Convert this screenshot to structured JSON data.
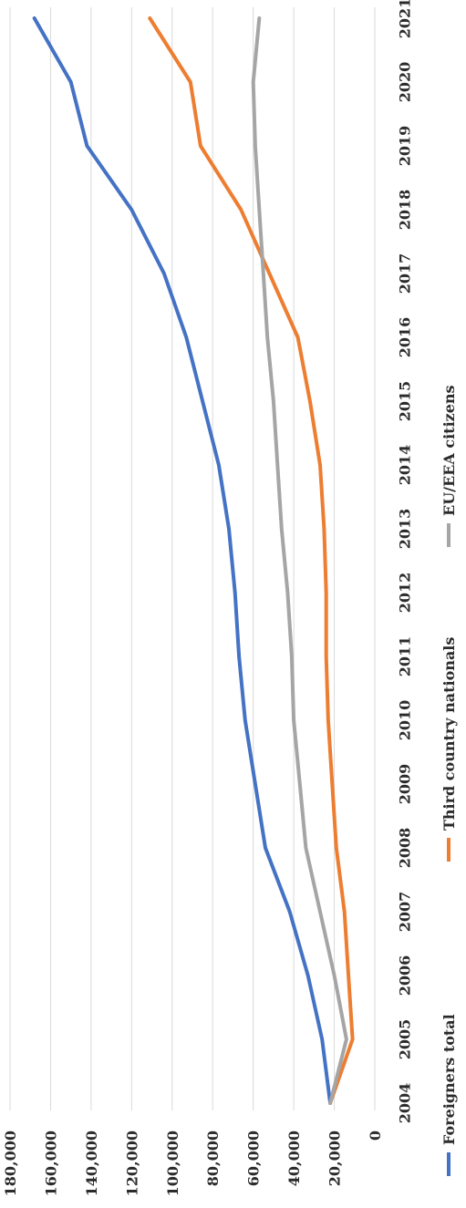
{
  "chart_data": {
    "type": "line",
    "title": "",
    "xlabel": "",
    "ylabel": "",
    "categories": [
      "2004",
      "2005",
      "2006",
      "2007",
      "2008",
      "2009",
      "2010",
      "2011",
      "2012",
      "2013",
      "2014",
      "2015",
      "2016",
      "2017",
      "2018",
      "2019",
      "2020",
      "2021"
    ],
    "ylim": [
      0,
      180000
    ],
    "ytick_labels": [
      "0",
      "20,000",
      "40,000",
      "60,000",
      "80,000",
      "100,000",
      "120,000",
      "140,000",
      "160,000",
      "180,000"
    ],
    "grid": true,
    "legend_position": "bottom",
    "series": [
      {
        "name": "Foreigners total",
        "color": "#4472c4",
        "values": [
          22000,
          26000,
          33000,
          42000,
          54000,
          59000,
          64000,
          67000,
          69000,
          72000,
          77000,
          85000,
          93000,
          104000,
          120000,
          142000,
          150000,
          168000
        ]
      },
      {
        "name": "Third country nationals",
        "color": "#ed7d31",
        "values": [
          22000,
          11000,
          13000,
          15000,
          19000,
          21000,
          23000,
          24000,
          24000,
          25000,
          27000,
          32000,
          38000,
          52000,
          66000,
          86000,
          91000,
          111000
        ]
      },
      {
        "name": "EU/EEA citizens",
        "color": "#a5a5a5",
        "values": [
          22000,
          14000,
          20000,
          27000,
          34000,
          37000,
          40000,
          41000,
          43000,
          46000,
          48000,
          50000,
          53000,
          55000,
          57000,
          59000,
          60000,
          57000
        ]
      }
    ]
  }
}
